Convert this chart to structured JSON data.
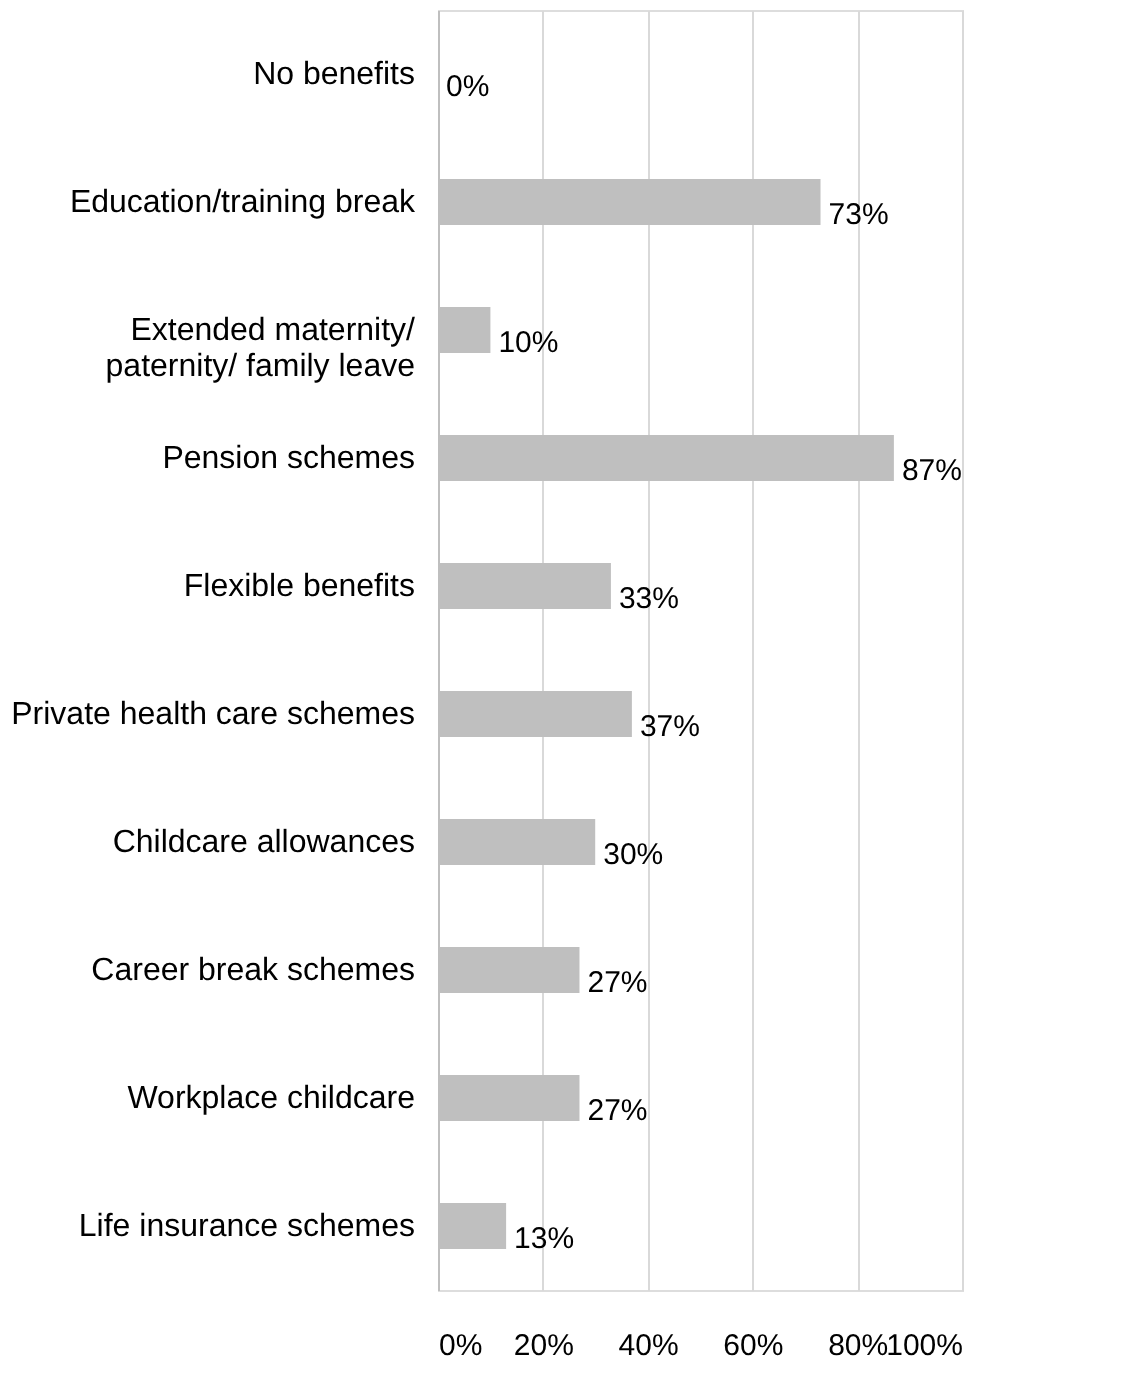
{
  "chart_data": {
    "type": "bar",
    "orientation": "horizontal",
    "categories": [
      "No benefits",
      "Education/training break",
      "Extended maternity/\npaternity/ family leave",
      "Pension schemes",
      "Flexible benefits",
      "Private health care schemes",
      "Childcare allowances",
      "Career break schemes",
      "Workplace childcare",
      "Life insurance schemes"
    ],
    "values": [
      0,
      73,
      10,
      87,
      33,
      37,
      30,
      27,
      27,
      13
    ],
    "value_labels": [
      "0%",
      "73%",
      "10%",
      "87%",
      "33%",
      "37%",
      "30%",
      "27%",
      "27%",
      "13%"
    ],
    "color": "#bfbfbf",
    "xlim": [
      0,
      100
    ],
    "xticks": [
      {
        "value": 0,
        "label": "0%"
      },
      {
        "value": 20,
        "label": "20%"
      },
      {
        "value": 40,
        "label": "40%"
      },
      {
        "value": 60,
        "label": "60%"
      },
      {
        "value": 80,
        "label": "80%"
      },
      {
        "value": 100,
        "label": "100%"
      }
    ],
    "grid": "x"
  }
}
